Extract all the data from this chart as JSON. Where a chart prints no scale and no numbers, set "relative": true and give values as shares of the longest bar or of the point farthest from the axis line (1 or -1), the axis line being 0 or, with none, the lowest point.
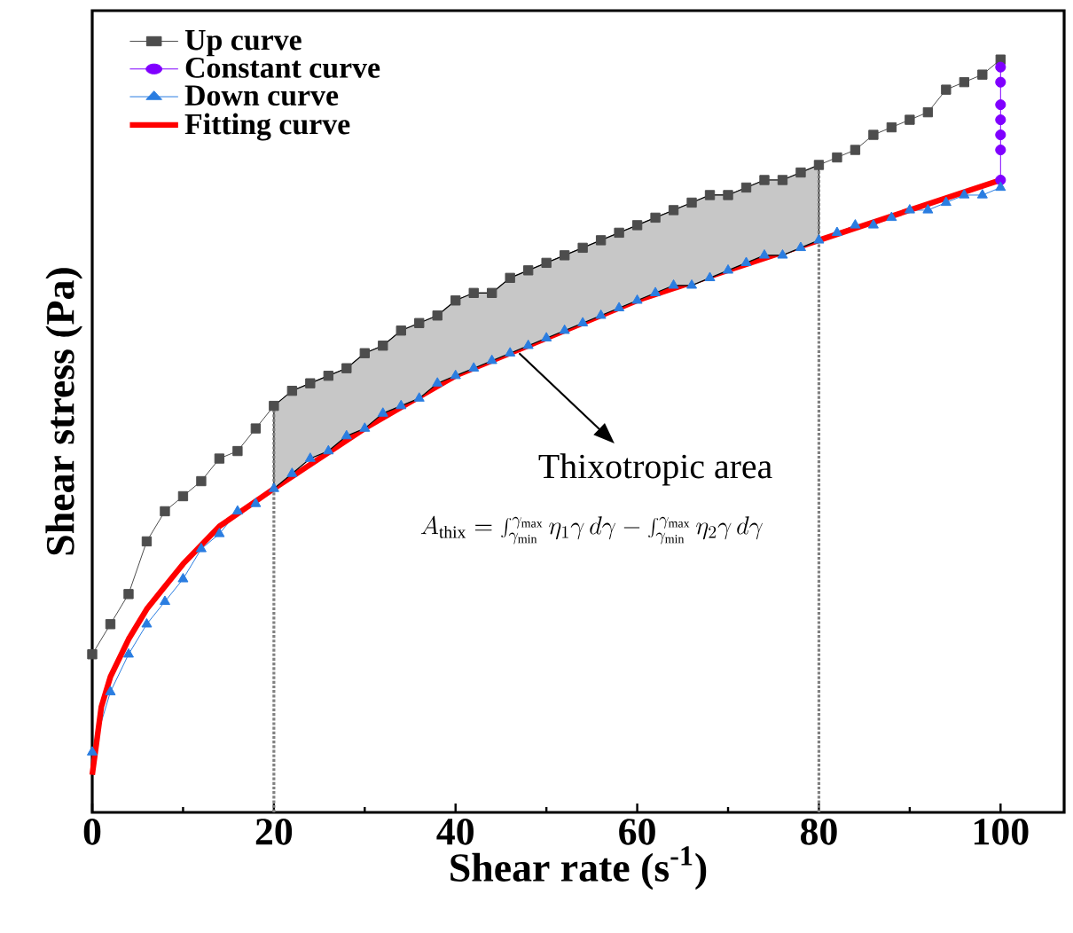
{
  "chart_data": {
    "type": "line",
    "relative": true,
    "xlabel": "Shear rate (s$^{-1}$)",
    "ylabel": "Shear stress (Pa)",
    "xlim": [
      0,
      107
    ],
    "xticks": [
      0,
      20,
      40,
      60,
      80,
      100
    ],
    "tick_labels": "x",
    "legend": "top left",
    "grid": false,
    "series": [
      {
        "name": "Up curve",
        "color": "#4d4d4d",
        "marker": "square",
        "x": [
          0,
          2,
          4,
          6,
          8,
          10,
          12,
          14,
          16,
          18,
          20,
          22,
          24,
          26,
          28,
          30,
          32,
          34,
          36,
          38,
          40,
          42,
          44,
          46,
          48,
          50,
          52,
          54,
          56,
          58,
          60,
          62,
          64,
          66,
          68,
          70,
          72,
          74,
          76,
          78,
          80,
          82,
          84,
          86,
          88,
          90,
          92,
          94,
          96,
          98,
          100
        ],
        "values": [
          0.21,
          0.25,
          0.29,
          0.36,
          0.4,
          0.42,
          0.44,
          0.47,
          0.48,
          0.51,
          0.54,
          0.56,
          0.57,
          0.58,
          0.59,
          0.61,
          0.62,
          0.64,
          0.65,
          0.66,
          0.68,
          0.69,
          0.69,
          0.71,
          0.72,
          0.73,
          0.74,
          0.75,
          0.76,
          0.77,
          0.78,
          0.79,
          0.8,
          0.81,
          0.82,
          0.82,
          0.83,
          0.84,
          0.84,
          0.85,
          0.86,
          0.87,
          0.88,
          0.9,
          0.91,
          0.92,
          0.93,
          0.96,
          0.97,
          0.98,
          1.0
        ]
      },
      {
        "name": "Constant curve",
        "color": "#8000ff",
        "marker": "circle",
        "x": [
          100,
          100,
          100,
          100,
          100,
          100,
          100
        ],
        "values": [
          0.99,
          0.97,
          0.94,
          0.92,
          0.9,
          0.88,
          0.84
        ]
      },
      {
        "name": "Down curve",
        "color": "#2a7de1",
        "marker": "triangle",
        "x": [
          0,
          2,
          4,
          6,
          8,
          10,
          12,
          14,
          16,
          18,
          20,
          22,
          24,
          26,
          28,
          30,
          32,
          34,
          36,
          38,
          40,
          42,
          44,
          46,
          48,
          50,
          52,
          54,
          56,
          58,
          60,
          62,
          64,
          66,
          68,
          70,
          72,
          74,
          76,
          78,
          80,
          82,
          84,
          86,
          88,
          90,
          92,
          94,
          96,
          98,
          100
        ],
        "values": [
          0.08,
          0.16,
          0.21,
          0.25,
          0.28,
          0.31,
          0.35,
          0.37,
          0.4,
          0.41,
          0.43,
          0.45,
          0.47,
          0.48,
          0.5,
          0.51,
          0.53,
          0.54,
          0.55,
          0.57,
          0.58,
          0.59,
          0.6,
          0.61,
          0.62,
          0.63,
          0.64,
          0.65,
          0.66,
          0.67,
          0.68,
          0.69,
          0.7,
          0.7,
          0.71,
          0.72,
          0.73,
          0.74,
          0.74,
          0.75,
          0.76,
          0.77,
          0.78,
          0.78,
          0.79,
          0.8,
          0.8,
          0.81,
          0.82,
          0.82,
          0.83
        ],
        "lower": [
          null,
          null,
          null,
          null,
          null,
          null,
          null,
          null,
          null,
          null,
          0.43,
          0.45,
          0.47,
          0.48,
          0.5,
          0.51,
          0.53,
          0.54,
          0.55,
          0.57,
          0.58,
          0.59,
          0.6,
          0.61,
          0.62,
          0.63,
          0.64,
          0.65,
          0.66,
          0.67,
          0.68,
          0.69,
          0.7,
          0.7,
          0.71,
          0.72,
          0.73,
          0.74,
          0.74,
          0.75,
          0.76,
          null,
          null,
          null,
          null,
          null,
          null,
          null,
          null,
          null,
          null
        ],
        "upper": [
          null,
          null,
          null,
          null,
          null,
          null,
          null,
          null,
          null,
          null,
          0.54,
          0.56,
          0.57,
          0.58,
          0.59,
          0.61,
          0.62,
          0.64,
          0.65,
          0.66,
          0.68,
          0.69,
          0.69,
          0.71,
          0.72,
          0.73,
          0.74,
          0.75,
          0.76,
          0.77,
          0.78,
          0.79,
          0.8,
          0.81,
          0.82,
          0.82,
          0.83,
          0.84,
          0.84,
          0.85,
          0.86,
          null,
          null,
          null,
          null,
          null,
          null,
          null,
          null,
          null,
          null
        ]
      },
      {
        "name": "Fitting curve",
        "color": "#ff0000",
        "marker": "none",
        "x": [
          0,
          1,
          2,
          4,
          6,
          8,
          10,
          14,
          20,
          30,
          40,
          50,
          60,
          70,
          80,
          90,
          100
        ],
        "values": [
          0.05,
          0.14,
          0.18,
          0.23,
          0.27,
          0.3,
          0.33,
          0.38,
          0.43,
          0.51,
          0.58,
          0.63,
          0.68,
          0.72,
          0.76,
          0.8,
          0.84
        ]
      }
    ],
    "ref_lines": [
      {
        "axis": "x",
        "value": 20,
        "color": "#808080",
        "line_style": "dotted"
      },
      {
        "axis": "x",
        "value": 80,
        "color": "#808080",
        "line_style": "dotted"
      }
    ],
    "annotations": [
      {
        "text": "Thixotropic area",
        "x": 47,
        "y": 0.61
      },
      "A_{\\mathrm{thix}}=\\int_{\\gamma_{\\min}}^{\\gamma_{\\max}}\\eta_{1}\\gamma\\, d\\gamma-\\int_{\\gamma_{\\min}}^{\\gamma_{\\max}}\\eta_{2}\\gamma\\, d\\gamma"
    ]
  }
}
